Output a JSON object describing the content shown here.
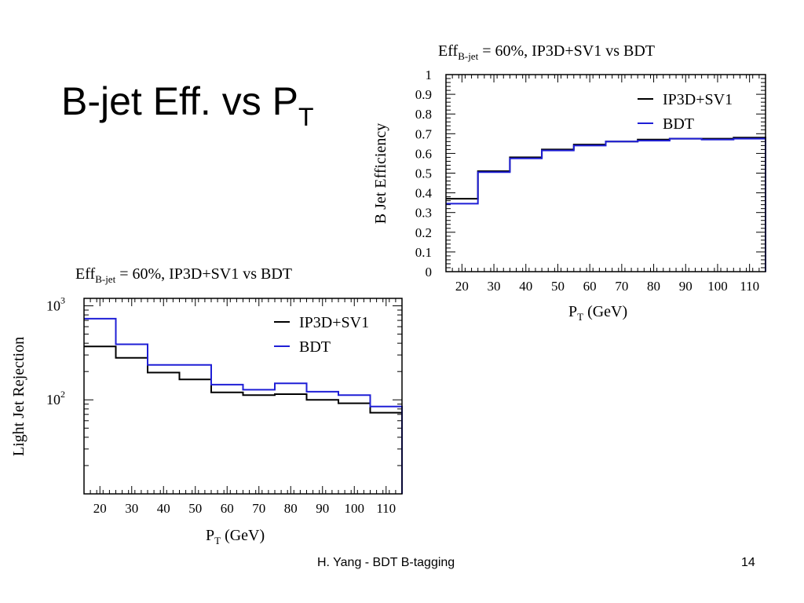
{
  "slide": {
    "title_main": "B-jet Eff. vs P",
    "title_sub": "T",
    "footer_text": "H. Yang - BDT B-tagging",
    "slide_number": "14"
  },
  "colors": {
    "ip3d": "#000000",
    "bdt": "#1f1fd6",
    "axis": "#000000"
  },
  "chart_data": [
    {
      "type": "line",
      "style": "step",
      "title_main": "Eff",
      "title_sub": "B-jet",
      "title_rest": " = 60%, IP3D+SV1 vs BDT",
      "xlabel_main": "P",
      "xlabel_sub": "T",
      "xlabel_rest": " (GeV)",
      "ylabel": "B Jet Efficiency",
      "xlim": [
        15,
        115
      ],
      "ylim": [
        0,
        1
      ],
      "yscale": "linear",
      "x_ticks": [
        20,
        30,
        40,
        50,
        60,
        70,
        80,
        90,
        100,
        110
      ],
      "y_ticks": [
        0,
        0.1,
        0.2,
        0.3,
        0.4,
        0.5,
        0.6,
        0.7,
        0.8,
        0.9,
        1
      ],
      "y_tick_labels": [
        "0",
        "0.1",
        "0.2",
        "0.3",
        "0.4",
        "0.5",
        "0.6",
        "0.7",
        "0.8",
        "0.9",
        "1"
      ],
      "legend_position": "top-right",
      "bin_edges": [
        15,
        25,
        35,
        45,
        55,
        65,
        75,
        85,
        95,
        105,
        115
      ],
      "series": [
        {
          "name": "IP3D+SV1",
          "values": [
            0.37,
            0.51,
            0.58,
            0.62,
            0.645,
            0.66,
            0.67,
            0.675,
            0.675,
            0.68
          ]
        },
        {
          "name": "BDT",
          "values": [
            0.345,
            0.505,
            0.575,
            0.615,
            0.64,
            0.66,
            0.665,
            0.675,
            0.67,
            0.675
          ]
        }
      ]
    },
    {
      "type": "line",
      "style": "step",
      "title_main": "Eff",
      "title_sub": "B-jet",
      "title_rest": " = 60%, IP3D+SV1 vs BDT",
      "xlabel_main": "P",
      "xlabel_sub": "T",
      "xlabel_rest": " (GeV)",
      "ylabel": "Light Jet Rejection",
      "xlim": [
        15,
        115
      ],
      "ylim": [
        10,
        1200
      ],
      "yscale": "log",
      "x_ticks": [
        20,
        30,
        40,
        50,
        60,
        70,
        80,
        90,
        100,
        110
      ],
      "y_ticks_major": [
        100,
        1000
      ],
      "y_tick_labels": [
        "10",
        "10"
      ],
      "y_tick_exponents": [
        "2",
        "3"
      ],
      "legend_position": "top-right",
      "bin_edges": [
        15,
        25,
        35,
        45,
        55,
        65,
        75,
        85,
        95,
        105,
        115
      ],
      "series": [
        {
          "name": "IP3D+SV1",
          "values": [
            370,
            280,
            195,
            165,
            120,
            112,
            115,
            100,
            92,
            73
          ]
        },
        {
          "name": "BDT",
          "values": [
            730,
            390,
            235,
            235,
            145,
            128,
            150,
            122,
            112,
            85
          ]
        }
      ]
    }
  ]
}
